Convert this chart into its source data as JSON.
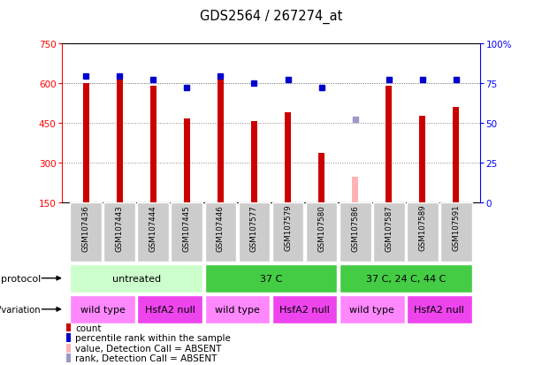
{
  "title": "GDS2564 / 267274_at",
  "samples": [
    "GSM107436",
    "GSM107443",
    "GSM107444",
    "GSM107445",
    "GSM107446",
    "GSM107577",
    "GSM107579",
    "GSM107580",
    "GSM107586",
    "GSM107587",
    "GSM107589",
    "GSM107591"
  ],
  "counts": [
    600,
    615,
    590,
    465,
    625,
    455,
    490,
    335,
    null,
    590,
    475,
    510
  ],
  "ranks": [
    79,
    79,
    77,
    72,
    79,
    75,
    77,
    72,
    null,
    77,
    77,
    77
  ],
  "absent_count": [
    null,
    null,
    null,
    null,
    null,
    null,
    null,
    null,
    245,
    null,
    null,
    null
  ],
  "absent_rank": [
    null,
    null,
    null,
    null,
    null,
    null,
    null,
    null,
    52,
    null,
    null,
    null
  ],
  "ylim_left": [
    150,
    750
  ],
  "ylim_right": [
    0,
    100
  ],
  "yticks_left": [
    150,
    300,
    450,
    600,
    750
  ],
  "yticks_right": [
    0,
    25,
    50,
    75,
    100
  ],
  "bar_color": "#CC0000",
  "absent_bar_color": "#FFB3B3",
  "rank_color": "#0000CC",
  "absent_rank_color": "#9999CC",
  "grid_color": "#888888",
  "protocol_groups": [
    {
      "label": "untreated",
      "start": 0,
      "end": 4,
      "color": "#CCFFCC"
    },
    {
      "label": "37 C",
      "start": 4,
      "end": 8,
      "color": "#44CC44"
    },
    {
      "label": "37 C, 24 C, 44 C",
      "start": 8,
      "end": 12,
      "color": "#44CC44"
    }
  ],
  "genotype_groups": [
    {
      "label": "wild type",
      "start": 0,
      "end": 2,
      "color": "#FF88FF"
    },
    {
      "label": "HsfA2 null",
      "start": 2,
      "end": 4,
      "color": "#EE44EE"
    },
    {
      "label": "wild type",
      "start": 4,
      "end": 6,
      "color": "#FF88FF"
    },
    {
      "label": "HsfA2 null",
      "start": 6,
      "end": 8,
      "color": "#EE44EE"
    },
    {
      "label": "wild type",
      "start": 8,
      "end": 10,
      "color": "#FF88FF"
    },
    {
      "label": "HsfA2 null",
      "start": 10,
      "end": 12,
      "color": "#EE44EE"
    }
  ],
  "legend_items": [
    {
      "label": "count",
      "color": "#CC0000"
    },
    {
      "label": "percentile rank within the sample",
      "color": "#0000CC"
    },
    {
      "label": "value, Detection Call = ABSENT",
      "color": "#FFB3B3"
    },
    {
      "label": "rank, Detection Call = ABSENT",
      "color": "#9999CC"
    }
  ],
  "bar_width": 0.18
}
